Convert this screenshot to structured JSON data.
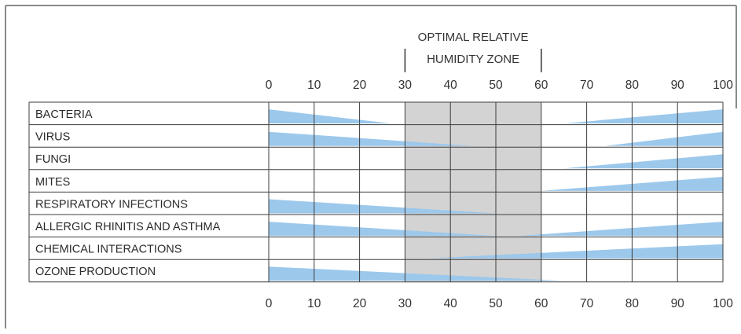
{
  "chart_data": {
    "type": "table",
    "title": "",
    "optimal_zone": {
      "label_line1": "OPTIMAL RELATIVE",
      "label_line2": "HUMIDITY ZONE",
      "range": [
        30,
        60
      ]
    },
    "x_ticks": [
      "0",
      "10",
      "20",
      "30",
      "40",
      "50",
      "60",
      "70",
      "80",
      "90",
      "100"
    ],
    "xlim": [
      0,
      100
    ],
    "grid": true,
    "rows": [
      {
        "label": "BACTERIA",
        "bands": [
          {
            "from": 0,
            "to": 27,
            "peak": "left"
          },
          {
            "from": 65,
            "to": 100,
            "peak": "right"
          }
        ]
      },
      {
        "label": "VIRUS",
        "bands": [
          {
            "from": 0,
            "to": 45,
            "peak": "left"
          },
          {
            "from": 74,
            "to": 100,
            "peak": "right"
          }
        ]
      },
      {
        "label": "FUNGI",
        "bands": [
          {
            "from": 65,
            "to": 100,
            "peak": "right"
          }
        ]
      },
      {
        "label": "MITES",
        "bands": [
          {
            "from": 60,
            "to": 100,
            "peak": "right"
          }
        ]
      },
      {
        "label": "RESPIRATORY INFECTIONS",
        "bands": [
          {
            "from": 0,
            "to": 50,
            "peak": "left"
          }
        ]
      },
      {
        "label": "ALLERGIC RHINITIS AND ASTHMA",
        "bands": [
          {
            "from": 0,
            "to": 50,
            "peak": "left"
          },
          {
            "from": 55,
            "to": 100,
            "peak": "right"
          }
        ]
      },
      {
        "label": "CHEMICAL INTERACTIONS",
        "bands": [
          {
            "from": 35,
            "to": 100,
            "peak": "right"
          }
        ]
      },
      {
        "label": "OZONE PRODUCTION",
        "bands": [
          {
            "from": 0,
            "to": 65,
            "peak": "left"
          }
        ]
      }
    ],
    "colors": {
      "band": "#9cc8ec",
      "zone": "#d3d3d3",
      "grid": "#3d3d3d",
      "frame": "#808080"
    }
  }
}
